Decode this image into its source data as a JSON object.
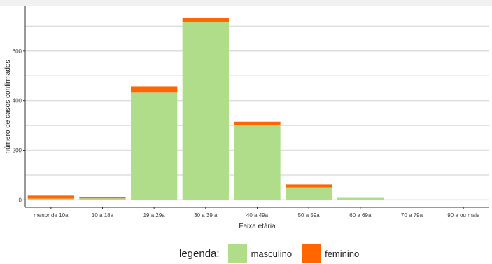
{
  "chart_data": {
    "type": "bar",
    "stacked": true,
    "categories": [
      "menor de 10a",
      "10 a 18a",
      "19 a 29a",
      "30 a 39 a",
      "40 a 49a",
      "50 a 59a",
      "60 a 69a",
      "70 a 79a",
      "90 a ou mais"
    ],
    "series": [
      {
        "name": "masculino",
        "color": "#afdd8a",
        "values": [
          5,
          6,
          432,
          718,
          300,
          50,
          8,
          0,
          0
        ]
      },
      {
        "name": "feminino",
        "color": "#ff6600",
        "values": [
          12,
          6,
          25,
          15,
          15,
          12,
          0,
          0,
          0
        ]
      }
    ],
    "xlabel": "Faixa etária",
    "ylabel": "número de casos confirmados",
    "ylim": [
      -30,
      780
    ],
    "yticks": [
      0,
      200,
      400,
      600
    ],
    "grid": true,
    "legend": {
      "title": "legenda:",
      "placement": "bottom"
    }
  }
}
